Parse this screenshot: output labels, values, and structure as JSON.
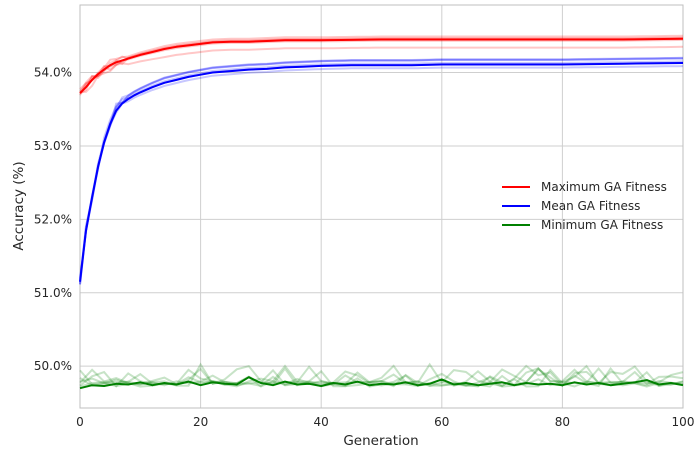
{
  "chart_data": {
    "type": "line",
    "xlabel": "Generation",
    "ylabel": "Accuracy (%)",
    "xlim": [
      0,
      100
    ],
    "ylim": [
      49.43,
      54.92
    ],
    "xticks": [
      0,
      20,
      40,
      60,
      80,
      100
    ],
    "xtick_labels": [
      "0",
      "20",
      "40",
      "60",
      "80",
      "100"
    ],
    "yticks": [
      50,
      51,
      52,
      53,
      54
    ],
    "ytick_labels": [
      "50.0%",
      "51.0%",
      "52.0%",
      "53.0%",
      "54.0%"
    ],
    "grid": true,
    "legend_position": "center-right",
    "series": [
      {
        "name": "Maximum GA Fitness",
        "color": "#ff0000",
        "x": [
          0,
          1,
          2,
          3,
          4,
          5,
          6,
          8,
          10,
          12,
          14,
          16,
          18,
          20,
          22,
          25,
          28,
          31,
          34,
          40,
          50,
          60,
          70,
          80,
          90,
          100
        ],
        "values": [
          53.72,
          53.8,
          53.9,
          53.98,
          54.04,
          54.1,
          54.14,
          54.19,
          54.24,
          54.28,
          54.32,
          54.35,
          54.37,
          54.39,
          54.41,
          54.42,
          54.42,
          54.43,
          54.44,
          54.44,
          54.45,
          54.45,
          54.45,
          54.45,
          54.45,
          54.46
        ]
      },
      {
        "name": "Mean GA Fitness",
        "color": "#0000ff",
        "x": [
          0,
          1,
          2,
          3,
          4,
          5,
          6,
          7,
          8,
          9,
          10,
          12,
          14,
          16,
          18,
          20,
          22,
          25,
          28,
          31,
          34,
          37,
          40,
          45,
          50,
          55,
          60,
          70,
          80,
          90,
          100
        ],
        "values": [
          51.15,
          51.85,
          52.3,
          52.72,
          53.05,
          53.3,
          53.48,
          53.58,
          53.64,
          53.69,
          53.73,
          53.8,
          53.86,
          53.9,
          53.94,
          53.97,
          54.0,
          54.02,
          54.04,
          54.05,
          54.07,
          54.08,
          54.09,
          54.1,
          54.1,
          54.1,
          54.11,
          54.11,
          54.11,
          54.12,
          54.13
        ]
      },
      {
        "name": "Minimum GA Fitness",
        "color": "#008000",
        "x": [
          0,
          2,
          4,
          6,
          8,
          10,
          12,
          14,
          16,
          18,
          20,
          22,
          24,
          26,
          28,
          30,
          32,
          34,
          36,
          38,
          40,
          42,
          44,
          46,
          48,
          50,
          52,
          54,
          56,
          58,
          60,
          62,
          64,
          66,
          68,
          70,
          72,
          74,
          76,
          78,
          80,
          82,
          84,
          86,
          88,
          90,
          92,
          94,
          96,
          98,
          100
        ],
        "values": [
          49.7,
          49.74,
          49.73,
          49.76,
          49.75,
          49.78,
          49.74,
          49.77,
          49.75,
          49.79,
          49.74,
          49.78,
          49.76,
          49.75,
          49.85,
          49.77,
          49.74,
          49.79,
          49.75,
          49.76,
          49.73,
          49.77,
          49.75,
          49.79,
          49.74,
          49.76,
          49.75,
          49.78,
          49.74,
          49.76,
          49.82,
          49.75,
          49.77,
          49.74,
          49.76,
          49.78,
          49.74,
          49.77,
          49.75,
          49.76,
          49.74,
          49.78,
          49.75,
          49.77,
          49.74,
          49.76,
          49.78,
          49.81,
          49.75,
          49.77,
          49.74
        ]
      }
    ]
  }
}
